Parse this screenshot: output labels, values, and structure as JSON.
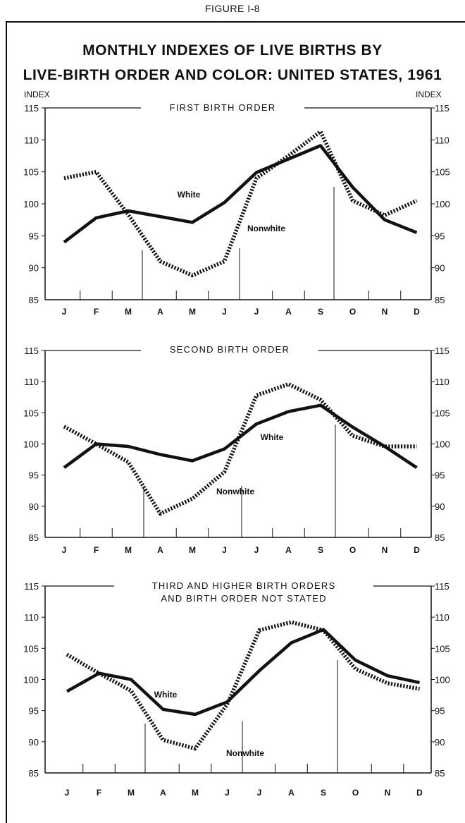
{
  "figure_label": "FIGURE I-8",
  "title_line1": "MONTHLY INDEXES OF LIVE BIRTHS BY",
  "title_line2": "LIVE-BIRTH ORDER AND COLOR: UNITED STATES, 1961",
  "colors": {
    "line": "#111111",
    "background": "#ffffff"
  },
  "chart_data": [
    {
      "type": "line",
      "title": "FIRST BIRTH ORDER",
      "ylabel_left": "INDEX",
      "ylabel_right": "INDEX",
      "categories": [
        "J",
        "F",
        "M",
        "A",
        "M",
        "J",
        "J",
        "A",
        "S",
        "O",
        "N",
        "D"
      ],
      "yticks": [
        85,
        90,
        95,
        100,
        105,
        110,
        115
      ],
      "ylim": [
        85,
        115
      ],
      "series": [
        {
          "name": "White",
          "style": "solid",
          "values": [
            94,
            97.8,
            98.9,
            98,
            97.1,
            100.2,
            104.9,
            107,
            109.1,
            102.6,
            97.5,
            95.5
          ]
        },
        {
          "name": "Nonwhite",
          "style": "dotted",
          "values": [
            104,
            105,
            98.3,
            91,
            88.8,
            91,
            104,
            107.5,
            111.3,
            100.5,
            98.2,
            100.5
          ]
        }
      ]
    },
    {
      "type": "line",
      "title": "SECOND BIRTH ORDER",
      "categories": [
        "J",
        "F",
        "M",
        "A",
        "M",
        "J",
        "J",
        "A",
        "S",
        "O",
        "N",
        "D"
      ],
      "yticks": [
        85,
        90,
        95,
        100,
        105,
        110,
        115
      ],
      "ylim": [
        85,
        115
      ],
      "series": [
        {
          "name": "White",
          "style": "solid",
          "values": [
            96.2,
            100,
            99.6,
            98.3,
            97.3,
            99.2,
            103.2,
            105.2,
            106.2,
            102.7,
            99.6,
            96.2
          ]
        },
        {
          "name": "Nonwhite",
          "style": "dotted",
          "values": [
            102.8,
            100,
            97.1,
            88.8,
            91.2,
            95.5,
            107.8,
            109.6,
            107.1,
            101.3,
            99.6,
            99.6
          ]
        }
      ]
    },
    {
      "type": "line",
      "title": "THIRD AND HIGHER BIRTH ORDERS",
      "subtitle": "AND BIRTH ORDER NOT STATED",
      "categories": [
        "J",
        "F",
        "M",
        "A",
        "M",
        "J",
        "J",
        "A",
        "S",
        "O",
        "N",
        "D"
      ],
      "yticks": [
        85,
        90,
        95,
        100,
        105,
        110,
        115
      ],
      "ylim": [
        85,
        115
      ],
      "series": [
        {
          "name": "White",
          "style": "solid",
          "values": [
            98.1,
            101,
            100,
            95.2,
            94.4,
            96.4,
            101.4,
            105.9,
            108,
            103.1,
            100.6,
            99.5
          ]
        },
        {
          "name": "Nonwhite",
          "style": "dotted",
          "values": [
            104,
            101,
            98.2,
            90.3,
            88.9,
            96,
            107.9,
            109.2,
            107.9,
            101.7,
            99.4,
            98.5
          ]
        }
      ]
    }
  ]
}
